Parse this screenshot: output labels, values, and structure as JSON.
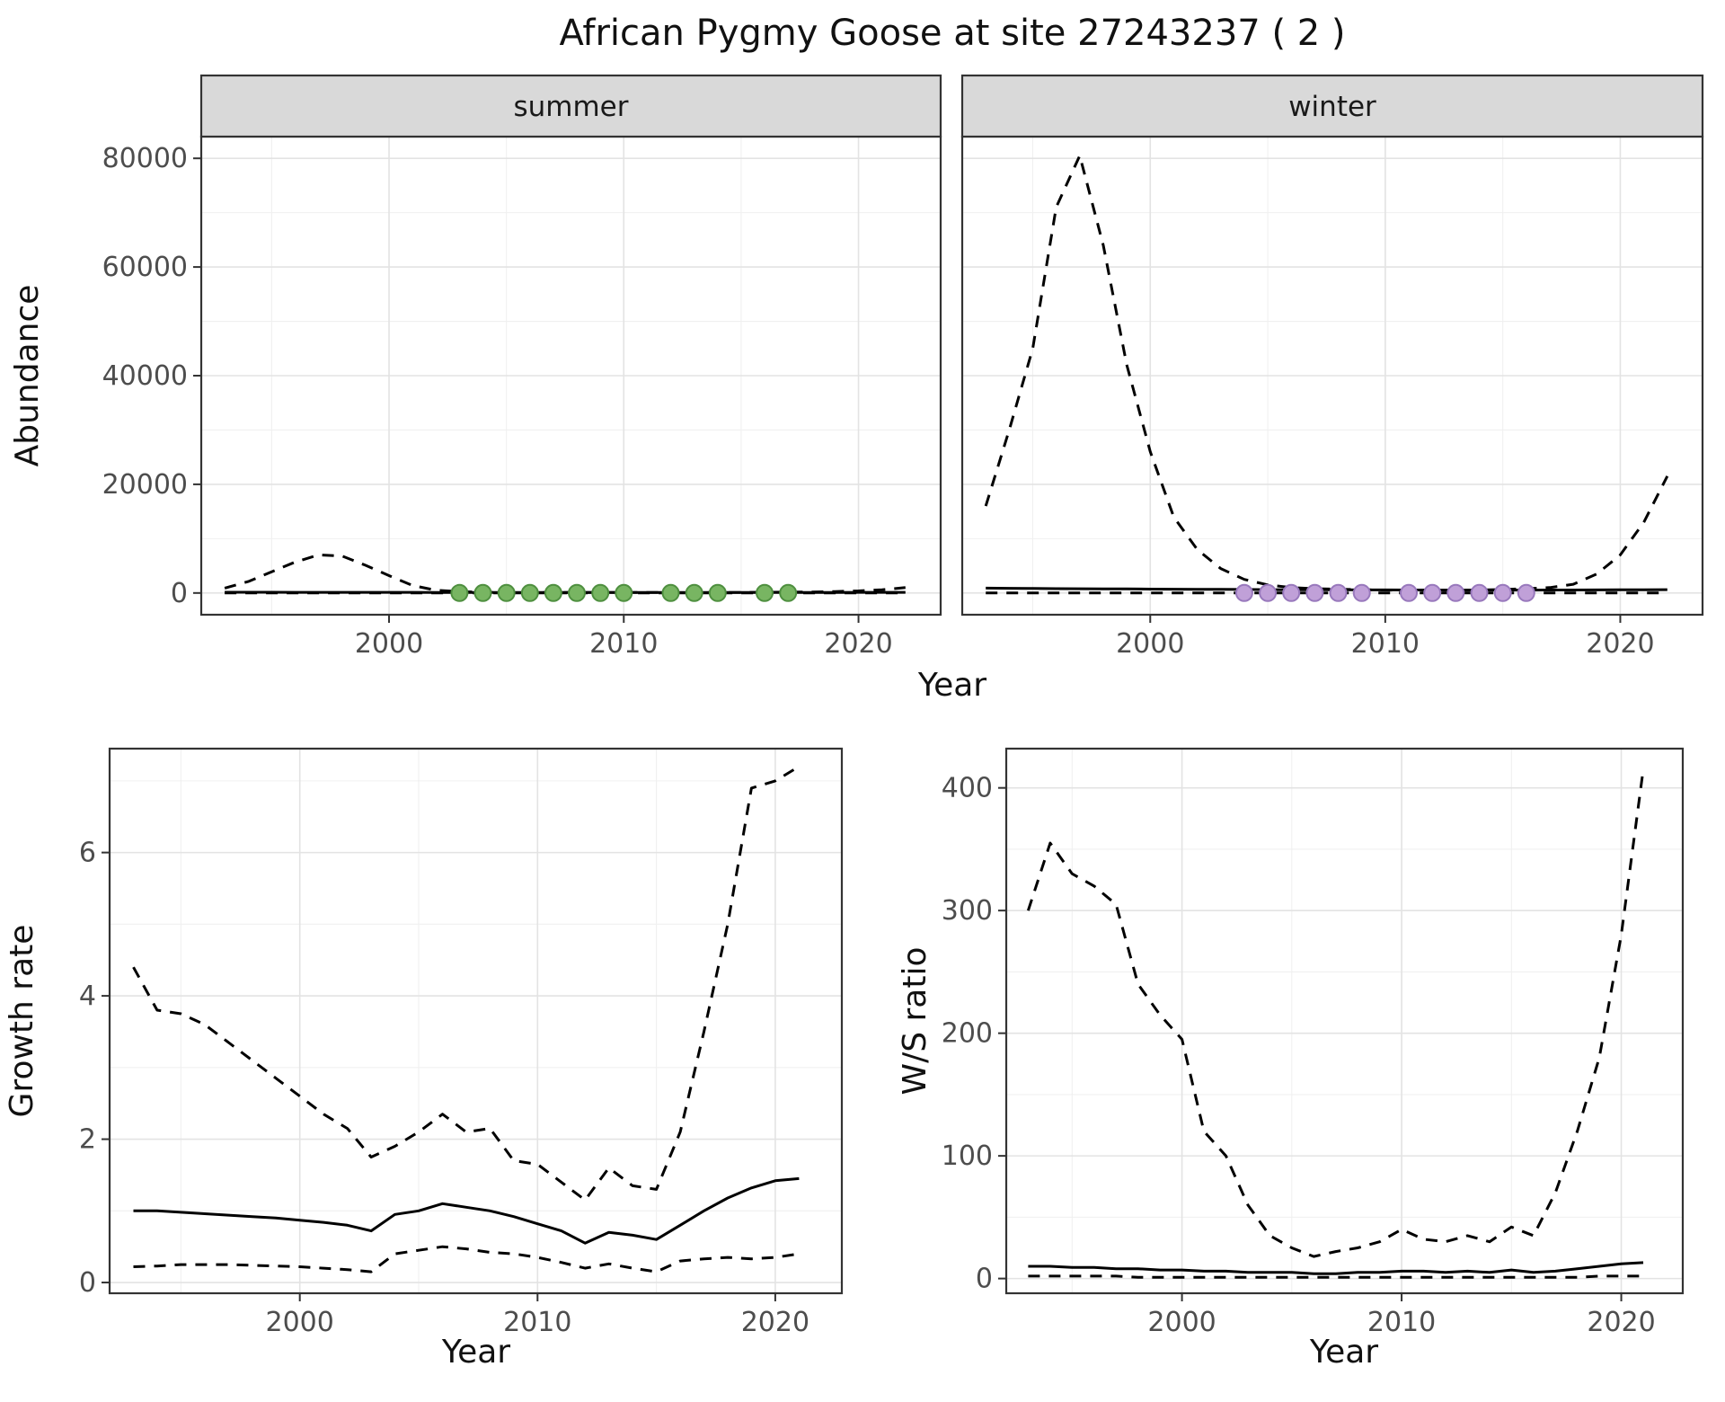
{
  "title": "African Pygmy Goose at site 27243237 ( 2 )",
  "theme": {
    "strip_bg": "#d9d9d9",
    "panel_border": "#333333",
    "grid_major": "#e3e3e3",
    "grid_minor": "#f0f0f0",
    "tick_color": "#333333",
    "tick_label_color": "#4d4d4d",
    "line_color": "#000000",
    "summer_point_fill": "#78b562",
    "summer_point_stroke": "#4e8f3f",
    "winter_point_fill": "#c0a0d8",
    "winter_point_stroke": "#9878bc"
  },
  "chart_data": [
    {
      "id": "abundance_summer",
      "type": "line",
      "facet_label": "summer",
      "ylabel": "Abundance",
      "xlabel": "Year",
      "xlim": [
        1992,
        2023.5
      ],
      "ylim": [
        -4000,
        84000
      ],
      "xticks": [
        2000,
        2010,
        2020
      ],
      "yticks": [
        0,
        20000,
        40000,
        60000,
        80000
      ],
      "xticks_minor": [
        1995,
        2005,
        2015
      ],
      "yticks_minor": [
        10000,
        30000,
        50000,
        70000
      ],
      "x": [
        1993,
        1994,
        1995,
        1996,
        1997,
        1998,
        1999,
        2000,
        2001,
        2002,
        2003,
        2004,
        2005,
        2006,
        2007,
        2008,
        2009,
        2010,
        2011,
        2012,
        2013,
        2014,
        2015,
        2016,
        2017,
        2018,
        2019,
        2020,
        2021,
        2022
      ],
      "series": [
        {
          "name": "upper_ci",
          "style": "dashed",
          "y": [
            900,
            2100,
            3900,
            5700,
            7000,
            6800,
            5100,
            3200,
            1400,
            500,
            250,
            150,
            110,
            90,
            80,
            80,
            80,
            80,
            80,
            80,
            90,
            100,
            110,
            130,
            150,
            190,
            260,
            380,
            600,
            1000
          ]
        },
        {
          "name": "lower_ci",
          "style": "dashed",
          "y": [
            15,
            15,
            15,
            15,
            15,
            10,
            10,
            10,
            10,
            10,
            10,
            10,
            10,
            10,
            10,
            10,
            10,
            10,
            10,
            10,
            10,
            10,
            10,
            10,
            10,
            10,
            10,
            10,
            10,
            10
          ]
        },
        {
          "name": "estimate",
          "style": "solid",
          "y": [
            130,
            130,
            130,
            125,
            125,
            120,
            120,
            115,
            115,
            110,
            110,
            105,
            105,
            100,
            100,
            100,
            100,
            100,
            100,
            100,
            100,
            100,
            100,
            100,
            105,
            105,
            110,
            115,
            120,
            125
          ]
        },
        {
          "name": "observed_counts",
          "style": "points",
          "fill_key": "summer_point_fill",
          "stroke_key": "summer_point_stroke",
          "x": [
            2003,
            2004,
            2005,
            2006,
            2007,
            2008,
            2009,
            2010,
            2012,
            2013,
            2014,
            2016,
            2017
          ],
          "y": [
            0,
            0,
            0,
            0,
            0,
            0,
            0,
            0,
            0,
            0,
            0,
            0,
            0
          ]
        }
      ]
    },
    {
      "id": "abundance_winter",
      "type": "line",
      "facet_label": "winter",
      "ylabel": "Abundance",
      "xlabel": "Year",
      "xlim": [
        1992,
        2023.5
      ],
      "ylim": [
        -4000,
        84000
      ],
      "xticks": [
        2000,
        2010,
        2020
      ],
      "yticks": [
        0,
        20000,
        40000,
        60000,
        80000
      ],
      "xticks_minor": [
        1995,
        2005,
        2015
      ],
      "yticks_minor": [
        10000,
        30000,
        50000,
        70000
      ],
      "x": [
        1993,
        1994,
        1995,
        1996,
        1997,
        1998,
        1999,
        2000,
        2001,
        2002,
        2003,
        2004,
        2005,
        2006,
        2007,
        2008,
        2009,
        2010,
        2011,
        2012,
        2013,
        2014,
        2015,
        2016,
        2017,
        2018,
        2019,
        2020,
        2021,
        2022
      ],
      "series": [
        {
          "name": "upper_ci",
          "style": "dashed",
          "y": [
            16000,
            30000,
            45000,
            71000,
            80500,
            64000,
            42000,
            26000,
            14000,
            8000,
            4500,
            2500,
            1500,
            1000,
            800,
            700,
            600,
            550,
            500,
            500,
            500,
            550,
            650,
            800,
            1000,
            1600,
            3500,
            7000,
            13000,
            21500
          ]
        },
        {
          "name": "lower_ci",
          "style": "dashed",
          "y": [
            20,
            18,
            16,
            15,
            14,
            13,
            12,
            11,
            10,
            10,
            10,
            10,
            10,
            10,
            10,
            10,
            10,
            10,
            10,
            10,
            10,
            10,
            10,
            10,
            10,
            10,
            10,
            10,
            10,
            10
          ]
        },
        {
          "name": "estimate",
          "style": "solid",
          "y": [
            900,
            860,
            830,
            800,
            780,
            760,
            740,
            720,
            700,
            680,
            660,
            640,
            620,
            600,
            590,
            580,
            570,
            560,
            550,
            545,
            540,
            540,
            540,
            540,
            545,
            550,
            560,
            575,
            590,
            610
          ]
        },
        {
          "name": "observed_counts",
          "style": "points",
          "fill_key": "winter_point_fill",
          "stroke_key": "winter_point_stroke",
          "x": [
            2004,
            2005,
            2006,
            2007,
            2008,
            2009,
            2011,
            2012,
            2013,
            2014,
            2015,
            2016
          ],
          "y": [
            0,
            0,
            0,
            0,
            0,
            0,
            0,
            0,
            0,
            0,
            0,
            0
          ]
        }
      ]
    },
    {
      "id": "growth_rate",
      "type": "line",
      "ylabel": "Growth rate",
      "xlabel": "Year",
      "xlim": [
        1992,
        2022.8
      ],
      "ylim": [
        -0.15,
        7.45
      ],
      "xticks": [
        2000,
        2010,
        2020
      ],
      "yticks": [
        0,
        2,
        4,
        6
      ],
      "xticks_minor": [
        1995,
        2005,
        2015
      ],
      "yticks_minor": [
        1,
        3,
        5,
        7
      ],
      "x": [
        1993,
        1994,
        1995,
        1996,
        1997,
        1998,
        1999,
        2000,
        2001,
        2002,
        2003,
        2004,
        2005,
        2006,
        2007,
        2008,
        2009,
        2010,
        2011,
        2012,
        2013,
        2014,
        2015,
        2016,
        2017,
        2018,
        2019,
        2020,
        2021
      ],
      "series": [
        {
          "name": "upper_ci",
          "style": "dashed",
          "y": [
            4.4,
            3.8,
            3.75,
            3.6,
            3.35,
            3.1,
            2.85,
            2.6,
            2.35,
            2.15,
            1.75,
            1.9,
            2.1,
            2.35,
            2.1,
            2.15,
            1.7,
            1.65,
            1.4,
            1.15,
            1.6,
            1.35,
            1.3,
            2.1,
            3.5,
            5.0,
            6.9,
            7.0,
            7.2
          ]
        },
        {
          "name": "lower_ci",
          "style": "dashed",
          "y": [
            0.22,
            0.23,
            0.25,
            0.25,
            0.25,
            0.24,
            0.23,
            0.22,
            0.2,
            0.18,
            0.15,
            0.4,
            0.45,
            0.5,
            0.47,
            0.42,
            0.4,
            0.35,
            0.28,
            0.2,
            0.26,
            0.2,
            0.15,
            0.3,
            0.33,
            0.35,
            0.33,
            0.35,
            0.4
          ]
        },
        {
          "name": "estimate",
          "style": "solid",
          "y": [
            1.0,
            1.0,
            0.98,
            0.96,
            0.94,
            0.92,
            0.9,
            0.87,
            0.84,
            0.8,
            0.72,
            0.95,
            1.0,
            1.1,
            1.05,
            1.0,
            0.92,
            0.82,
            0.72,
            0.55,
            0.7,
            0.66,
            0.6,
            0.8,
            1.0,
            1.18,
            1.32,
            1.42,
            1.45
          ]
        }
      ]
    },
    {
      "id": "ws_ratio",
      "type": "line",
      "ylabel": "W/S ratio",
      "xlabel": "Year",
      "xlim": [
        1992,
        2022.8
      ],
      "ylim": [
        -12,
        432
      ],
      "xticks": [
        2000,
        2010,
        2020
      ],
      "yticks": [
        0,
        100,
        200,
        300,
        400
      ],
      "xticks_minor": [
        1995,
        2005,
        2015
      ],
      "yticks_minor": [
        50,
        150,
        250,
        350
      ],
      "x": [
        1993,
        1994,
        1995,
        1996,
        1997,
        1998,
        1999,
        2000,
        2001,
        2002,
        2003,
        2004,
        2005,
        2006,
        2007,
        2008,
        2009,
        2010,
        2011,
        2012,
        2013,
        2014,
        2015,
        2016,
        2017,
        2018,
        2019,
        2020,
        2021
      ],
      "series": [
        {
          "name": "upper_ci",
          "style": "dashed",
          "y": [
            300,
            355,
            330,
            320,
            305,
            240,
            215,
            195,
            120,
            100,
            60,
            35,
            25,
            18,
            22,
            25,
            30,
            40,
            32,
            30,
            35,
            30,
            42,
            35,
            70,
            120,
            180,
            280,
            415
          ]
        },
        {
          "name": "lower_ci",
          "style": "dashed",
          "y": [
            2,
            2,
            2,
            2,
            2,
            1,
            1,
            1,
            1,
            1,
            1,
            1,
            1,
            1,
            1,
            1,
            1,
            1,
            1,
            1,
            1,
            1,
            1,
            1,
            1,
            1,
            2,
            2,
            2
          ]
        },
        {
          "name": "estimate",
          "style": "solid",
          "y": [
            10,
            10,
            9,
            9,
            8,
            8,
            7,
            7,
            6,
            6,
            5,
            5,
            5,
            4,
            4,
            5,
            5,
            6,
            6,
            5,
            6,
            5,
            7,
            5,
            6,
            8,
            10,
            12,
            13
          ]
        }
      ]
    }
  ]
}
